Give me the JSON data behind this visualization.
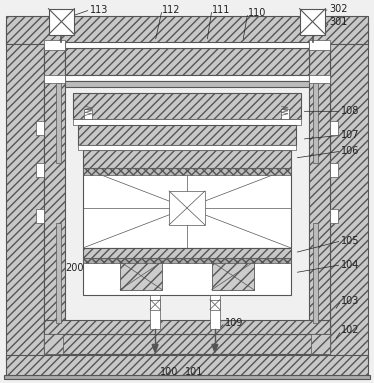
{
  "bg_color": "#f0f0f0",
  "line_color": "#555555",
  "hatch_fc": "#c8c8c8",
  "white_fc": "#ffffff",
  "label_color": "#222222",
  "figsize": [
    3.74,
    3.83
  ],
  "dpi": 100
}
